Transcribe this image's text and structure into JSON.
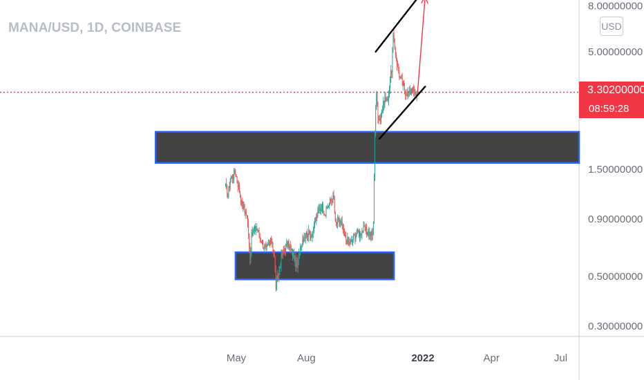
{
  "header": {
    "title": "MANA/USD, 1D, COINBASE"
  },
  "currency_button": "USD",
  "price_tag": {
    "price": "3.30200000",
    "countdown": "08:59:28",
    "color": "#f23645"
  },
  "colors": {
    "up": "#26a69a",
    "down": "#ef5350",
    "zone_fill": "#434343",
    "zone_border": "#2962ff",
    "arrow": "#f23645",
    "axis": "#c9ccd3",
    "tick_text": "#6a6d78"
  },
  "chart_data": {
    "type": "candlestick",
    "title": "MANA/USD, 1D, COINBASE",
    "y_scale": "log",
    "ylim": [
      0.27,
      8.5
    ],
    "y_ticks": [
      "8.00000000",
      "5.00000000",
      "1.50000000",
      "0.90000000",
      "0.50000000",
      "0.30000000"
    ],
    "x_ticks": [
      {
        "label": "May",
        "bold": false
      },
      {
        "label": "Aug",
        "bold": false
      },
      {
        "label": "2022",
        "bold": true
      },
      {
        "label": "Apr",
        "bold": false
      },
      {
        "label": "Jul",
        "bold": false
      }
    ],
    "current_price": 3.302,
    "price_path": [
      [
        "2021-04-17",
        1.25
      ],
      [
        "2021-04-20",
        1.15
      ],
      [
        "2021-04-23",
        1.35
      ],
      [
        "2021-04-26",
        1.4
      ],
      [
        "2021-04-30",
        1.45
      ],
      [
        "2021-05-04",
        1.25
      ],
      [
        "2021-05-08",
        1.05
      ],
      [
        "2021-05-11",
        1.0
      ],
      [
        "2021-05-14",
        0.95
      ],
      [
        "2021-05-17",
        0.8
      ],
      [
        "2021-05-19",
        0.6
      ],
      [
        "2021-05-21",
        0.75
      ],
      [
        "2021-05-24",
        0.8
      ],
      [
        "2021-05-28",
        0.82
      ],
      [
        "2021-06-01",
        0.75
      ],
      [
        "2021-06-05",
        0.7
      ],
      [
        "2021-06-09",
        0.65
      ],
      [
        "2021-06-13",
        0.7
      ],
      [
        "2021-06-17",
        0.72
      ],
      [
        "2021-06-20",
        0.6
      ],
      [
        "2021-06-22",
        0.45
      ],
      [
        "2021-06-25",
        0.5
      ],
      [
        "2021-06-29",
        0.6
      ],
      [
        "2021-07-03",
        0.66
      ],
      [
        "2021-07-07",
        0.7
      ],
      [
        "2021-07-11",
        0.66
      ],
      [
        "2021-07-15",
        0.62
      ],
      [
        "2021-07-20",
        0.55
      ],
      [
        "2021-07-24",
        0.68
      ],
      [
        "2021-07-28",
        0.75
      ],
      [
        "2021-08-02",
        0.78
      ],
      [
        "2021-08-06",
        0.76
      ],
      [
        "2021-08-10",
        0.8
      ],
      [
        "2021-08-14",
        0.92
      ],
      [
        "2021-08-18",
        1.0
      ],
      [
        "2021-08-22",
        1.02
      ],
      [
        "2021-08-26",
        0.95
      ],
      [
        "2021-08-30",
        1.05
      ],
      [
        "2021-09-03",
        1.1
      ],
      [
        "2021-09-06",
        1.12
      ],
      [
        "2021-09-08",
        0.85
      ],
      [
        "2021-09-12",
        0.88
      ],
      [
        "2021-09-16",
        0.86
      ],
      [
        "2021-09-20",
        0.75
      ],
      [
        "2021-09-24",
        0.72
      ],
      [
        "2021-09-28",
        0.7
      ],
      [
        "2021-10-02",
        0.75
      ],
      [
        "2021-10-06",
        0.78
      ],
      [
        "2021-10-10",
        0.78
      ],
      [
        "2021-10-14",
        0.8
      ],
      [
        "2021-10-18",
        0.8
      ],
      [
        "2021-10-22",
        0.78
      ],
      [
        "2021-10-26",
        0.76
      ],
      [
        "2021-10-28",
        0.85
      ],
      [
        "2021-10-29",
        1.4
      ],
      [
        "2021-10-30",
        2.2
      ],
      [
        "2021-10-31",
        2.8
      ],
      [
        "2021-11-01",
        3.2
      ],
      [
        "2021-11-03",
        2.6
      ],
      [
        "2021-11-06",
        2.5
      ],
      [
        "2021-11-09",
        2.8
      ],
      [
        "2021-11-12",
        3.1
      ],
      [
        "2021-11-15",
        3.0
      ],
      [
        "2021-11-18",
        3.5
      ],
      [
        "2021-11-21",
        4.2
      ],
      [
        "2021-11-23",
        5.8
      ],
      [
        "2021-11-25",
        5.2
      ],
      [
        "2021-11-28",
        4.5
      ],
      [
        "2021-12-02",
        3.8
      ],
      [
        "2021-12-05",
        3.6
      ],
      [
        "2021-12-08",
        3.4
      ],
      [
        "2021-12-11",
        3.3
      ],
      [
        "2021-12-14",
        3.25
      ],
      [
        "2021-12-17",
        3.5
      ],
      [
        "2021-12-20",
        3.3
      ],
      [
        "2021-12-23",
        3.2
      ],
      [
        "2021-12-25",
        3.302
      ]
    ],
    "zones": [
      {
        "from": "2021-01-15",
        "to": "2022-08-01",
        "low": 1.6,
        "high": 2.2
      },
      {
        "from": "2021-04-30",
        "to": "2021-11-24",
        "low": 0.485,
        "high": 0.64
      }
    ],
    "channel_upper": [
      [
        "2021-10-31",
        5.0
      ],
      [
        "2021-12-31",
        9.2
      ]
    ],
    "channel_lower": [
      [
        "2021-11-05",
        2.05
      ],
      [
        "2022-01-04",
        3.5
      ]
    ],
    "projection_arrow": [
      [
        "2021-12-25",
        3.3
      ],
      [
        "2022-01-04",
        8.8
      ]
    ]
  }
}
